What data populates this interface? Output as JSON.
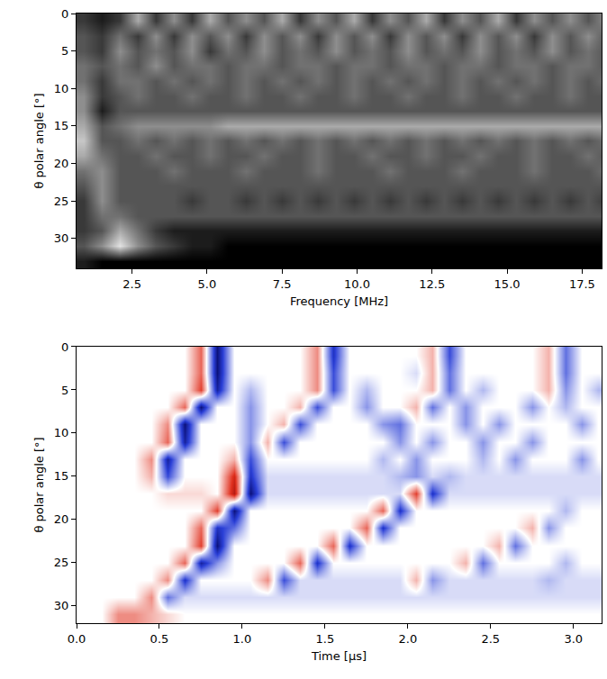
{
  "chart_data": [
    {
      "type": "heatmap",
      "xlabel": "Frequency [MHz]",
      "ylabel": "θ polar angle [°]",
      "xlim": [
        0.65,
        18.15
      ],
      "ylim": [
        34,
        0
      ],
      "xticks": [
        2.5,
        {
          "value": 5,
          "label": "5.0"
        },
        7.5,
        {
          "value": 10,
          "label": "10.0"
        },
        12.5,
        {
          "value": 15,
          "label": "15.0"
        },
        17.5
      ],
      "yticks": [
        0,
        5,
        10,
        15,
        20,
        25,
        30
      ],
      "zlim": [
        0,
        9
      ],
      "x": [
        0.9,
        1.5,
        2.1,
        2.7,
        3.3,
        3.9,
        4.5,
        5.1,
        5.7,
        6.3,
        6.9,
        7.5,
        8.1,
        8.7,
        9.3,
        9.9,
        10.5,
        11.1,
        11.7,
        12.3,
        12.9,
        13.5,
        14.1,
        14.7,
        15.3,
        15.9,
        16.5,
        17.1,
        17.7,
        18.3
      ],
      "y": [
        1,
        3,
        5,
        7,
        9,
        11,
        13,
        15,
        17,
        19,
        21,
        23,
        25,
        27,
        29,
        31,
        33
      ],
      "z": [
        [
          2,
          1,
          2,
          6,
          2,
          5,
          2,
          6,
          3,
          5,
          3,
          6,
          2,
          5,
          3,
          6,
          2,
          5,
          3,
          6,
          2,
          5,
          3,
          6,
          2,
          5,
          3,
          5,
          3,
          5
        ],
        [
          3,
          2,
          4,
          2,
          5,
          2,
          5,
          3,
          5,
          2,
          5,
          3,
          5,
          2,
          5,
          3,
          5,
          2,
          5,
          3,
          5,
          2,
          5,
          3,
          5,
          2,
          5,
          3,
          5,
          3
        ],
        [
          3,
          2,
          5,
          3,
          4,
          3,
          5,
          2,
          4,
          3,
          5,
          3,
          4,
          3,
          5,
          3,
          4,
          3,
          5,
          3,
          4,
          3,
          5,
          3,
          4,
          3,
          5,
          3,
          4,
          3
        ],
        [
          4,
          3,
          4,
          3,
          5,
          3,
          4,
          4,
          3,
          4,
          4,
          3,
          4,
          4,
          3,
          4,
          4,
          3,
          4,
          4,
          3,
          4,
          4,
          3,
          4,
          4,
          3,
          4,
          4,
          3
        ],
        [
          4,
          2,
          4,
          4,
          3,
          4,
          3,
          4,
          3,
          4,
          3,
          4,
          3,
          4,
          3,
          4,
          3,
          4,
          3,
          4,
          3,
          4,
          3,
          4,
          3,
          4,
          3,
          4,
          3,
          4
        ],
        [
          5,
          2,
          3,
          4,
          3,
          3,
          4,
          3,
          3,
          4,
          3,
          3,
          4,
          3,
          3,
          4,
          3,
          3,
          4,
          3,
          3,
          4,
          3,
          3,
          4,
          3,
          3,
          4,
          3,
          3
        ],
        [
          5,
          1,
          3,
          3,
          3,
          3,
          3,
          3,
          3,
          3,
          3,
          3,
          3,
          3,
          3,
          3,
          3,
          3,
          3,
          3,
          3,
          3,
          3,
          3,
          3,
          3,
          3,
          3,
          3,
          3
        ],
        [
          6,
          3,
          4,
          5,
          5,
          5,
          5,
          5,
          6,
          6,
          6,
          6,
          6,
          6,
          6,
          6,
          6,
          6,
          6,
          6,
          6,
          6,
          6,
          6,
          6,
          6,
          6,
          6,
          6,
          6
        ],
        [
          7,
          3,
          3,
          4,
          3,
          4,
          3,
          4,
          3,
          4,
          3,
          4,
          3,
          4,
          3,
          4,
          3,
          4,
          3,
          4,
          3,
          4,
          3,
          4,
          3,
          4,
          3,
          4,
          3,
          4
        ],
        [
          6,
          4,
          3,
          3,
          4,
          3,
          3,
          4,
          3,
          3,
          4,
          3,
          3,
          4,
          3,
          3,
          4,
          3,
          3,
          4,
          3,
          3,
          4,
          3,
          3,
          4,
          3,
          3,
          4,
          3
        ],
        [
          4,
          5,
          3,
          3,
          3,
          4,
          3,
          3,
          3,
          4,
          3,
          3,
          3,
          4,
          3,
          3,
          3,
          4,
          3,
          3,
          3,
          4,
          3,
          3,
          3,
          4,
          3,
          3,
          3,
          4
        ],
        [
          3,
          5,
          3,
          3,
          3,
          3,
          3,
          3,
          3,
          3,
          3,
          3,
          3,
          3,
          3,
          3,
          3,
          3,
          3,
          3,
          3,
          3,
          3,
          3,
          3,
          3,
          3,
          3,
          3,
          3
        ],
        [
          2,
          5,
          3,
          3,
          3,
          3,
          2,
          3,
          3,
          2,
          3,
          2,
          3,
          2,
          3,
          2,
          3,
          2,
          3,
          2,
          3,
          2,
          3,
          2,
          3,
          2,
          3,
          2,
          3,
          2
        ],
        [
          2,
          4,
          4,
          3,
          3,
          3,
          3,
          3,
          3,
          3,
          3,
          3,
          3,
          3,
          3,
          3,
          3,
          3,
          3,
          3,
          3,
          3,
          3,
          3,
          3,
          3,
          3,
          3,
          3,
          3
        ],
        [
          2,
          3,
          6,
          4,
          2,
          1,
          1,
          1,
          1,
          1,
          1,
          1,
          1,
          1,
          1,
          1,
          1,
          1,
          1,
          1,
          1,
          1,
          1,
          1,
          1,
          1,
          1,
          1,
          1,
          1
        ],
        [
          3,
          5,
          8,
          5,
          3,
          2,
          1,
          1,
          0,
          0,
          0,
          0,
          0,
          0,
          0,
          0,
          0,
          0,
          0,
          0,
          0,
          0,
          0,
          0,
          0,
          0,
          0,
          0,
          0,
          0
        ],
        [
          1,
          0,
          0,
          0,
          0,
          0,
          0,
          0,
          0,
          0,
          0,
          0,
          0,
          0,
          0,
          0,
          0,
          0,
          0,
          0,
          0,
          0,
          0,
          0,
          0,
          0,
          0,
          0,
          0,
          0
        ]
      ]
    },
    {
      "type": "heatmap",
      "xlabel": "Time [μs]",
      "ylabel": "θ polar angle [°]",
      "xlim": [
        0,
        3.17
      ],
      "ylim": [
        32,
        0
      ],
      "xticks": [
        {
          "value": 0,
          "label": "0.0"
        },
        0.5,
        {
          "value": 1,
          "label": "1.0"
        },
        1.5,
        {
          "value": 2,
          "label": "2.0"
        },
        2.5,
        {
          "value": 3,
          "label": "3.0"
        }
      ],
      "yticks": [
        0,
        5,
        10,
        15,
        20,
        25,
        30
      ],
      "zlim": [
        -9,
        9
      ],
      "x": [
        0.05,
        0.15,
        0.25,
        0.35,
        0.45,
        0.55,
        0.65,
        0.75,
        0.85,
        0.95,
        1.05,
        1.15,
        1.25,
        1.35,
        1.45,
        1.55,
        1.65,
        1.75,
        1.85,
        1.95,
        2.05,
        2.15,
        2.25,
        2.35,
        2.45,
        2.55,
        2.65,
        2.75,
        2.85,
        2.95,
        3.05,
        3.15
      ],
      "y": [
        1,
        3,
        5,
        7,
        9,
        11,
        13,
        15,
        17,
        19,
        21,
        23,
        25,
        27,
        29,
        31
      ],
      "z": [
        [
          0,
          0,
          0,
          0,
          0,
          0,
          0,
          -4,
          8,
          0,
          0,
          0,
          0,
          0,
          -3,
          6,
          0,
          0,
          0,
          0,
          0,
          -2,
          5,
          0,
          0,
          0,
          0,
          0,
          -2,
          4,
          0,
          0
        ],
        [
          0,
          0,
          0,
          0,
          0,
          0,
          0,
          -4,
          8,
          0,
          0,
          0,
          0,
          0,
          -3,
          5,
          0,
          0,
          0,
          0,
          1,
          -2,
          4,
          0,
          0,
          0,
          0,
          0,
          -2,
          4,
          0,
          0
        ],
        [
          0,
          0,
          0,
          0,
          0,
          0,
          0,
          -5,
          7,
          0,
          2,
          0,
          0,
          0,
          -3,
          5,
          0,
          2,
          0,
          0,
          0,
          -2,
          4,
          0,
          2,
          0,
          0,
          0,
          -2,
          3,
          0,
          2
        ],
        [
          0,
          0,
          0,
          0,
          0,
          0,
          -4,
          8,
          0,
          0,
          3,
          0,
          0,
          -2,
          5,
          0,
          0,
          3,
          0,
          0,
          -2,
          4,
          0,
          3,
          0,
          0,
          0,
          3,
          0,
          2,
          0,
          0
        ],
        [
          0,
          0,
          0,
          0,
          0,
          -3,
          8,
          0,
          0,
          0,
          3,
          0,
          -2,
          5,
          0,
          0,
          0,
          0,
          3,
          4,
          0,
          0,
          0,
          3,
          0,
          3,
          0,
          0,
          0,
          0,
          3,
          0
        ],
        [
          0,
          0,
          0,
          0,
          0,
          -4,
          7,
          0,
          0,
          0,
          3,
          -2,
          5,
          0,
          0,
          0,
          0,
          0,
          0,
          3,
          0,
          3,
          0,
          0,
          3,
          0,
          0,
          3,
          0,
          0,
          0,
          0
        ],
        [
          0,
          0,
          0,
          0,
          -3,
          7,
          0,
          0,
          0,
          -2,
          5,
          0,
          0,
          0,
          0,
          0,
          0,
          0,
          2,
          0,
          3,
          0,
          0,
          0,
          2,
          0,
          3,
          0,
          0,
          0,
          3,
          0
        ],
        [
          0,
          0,
          0,
          0,
          -2,
          5,
          0,
          0,
          0,
          -6,
          6,
          1,
          1,
          1,
          1,
          1,
          1,
          1,
          1,
          2,
          3,
          1,
          2,
          1,
          1,
          1,
          1,
          1,
          1,
          1,
          1,
          1
        ],
        [
          0,
          0,
          0,
          0,
          0,
          -1,
          -1,
          -1,
          0,
          -7,
          8,
          1,
          1,
          1,
          1,
          1,
          1,
          1,
          1,
          1,
          -5,
          6,
          1,
          1,
          1,
          1,
          1,
          1,
          1,
          1,
          1,
          1
        ],
        [
          0,
          0,
          0,
          0,
          0,
          0,
          0,
          0,
          -5,
          8,
          0,
          0,
          0,
          0,
          0,
          0,
          0,
          0,
          -4,
          6,
          0,
          0,
          0,
          0,
          0,
          0,
          0,
          0,
          0,
          2,
          0,
          0
        ],
        [
          0,
          0,
          0,
          0,
          0,
          0,
          0,
          -4,
          6,
          4,
          0,
          0,
          0,
          0,
          0,
          0,
          0,
          -4,
          6,
          0,
          0,
          0,
          0,
          0,
          0,
          0,
          0,
          -2,
          3,
          0,
          0,
          0
        ],
        [
          0,
          0,
          0,
          0,
          0,
          0,
          0,
          -5,
          8,
          0,
          0,
          0,
          0,
          0,
          0,
          -4,
          6,
          0,
          0,
          0,
          0,
          0,
          0,
          0,
          0,
          -2,
          4,
          0,
          0,
          0,
          0,
          0
        ],
        [
          0,
          0,
          0,
          0,
          0,
          0,
          -4,
          7,
          3,
          0,
          0,
          0,
          0,
          -4,
          6,
          0,
          0,
          0,
          0,
          0,
          0,
          0,
          0,
          -2,
          4,
          0,
          0,
          0,
          0,
          2,
          0,
          0
        ],
        [
          0,
          0,
          0,
          0,
          0,
          -3,
          6,
          0,
          0,
          0,
          0,
          -3,
          5,
          1,
          1,
          1,
          1,
          1,
          1,
          1,
          -2,
          3,
          1,
          1,
          1,
          1,
          1,
          1,
          2,
          1,
          1,
          1
        ],
        [
          0,
          0,
          0,
          0,
          -3,
          4,
          1,
          1,
          1,
          1,
          1,
          1,
          1,
          1,
          1,
          1,
          1,
          1,
          1,
          1,
          1,
          1,
          1,
          1,
          1,
          1,
          1,
          1,
          1,
          1,
          1,
          1
        ],
        [
          0,
          0,
          -3,
          -3,
          -2,
          -1,
          0,
          0,
          0,
          0,
          0,
          0,
          0,
          0,
          0,
          0,
          0,
          0,
          0,
          0,
          0,
          0,
          0,
          0,
          0,
          0,
          0,
          0,
          0,
          0,
          0,
          0
        ]
      ]
    }
  ]
}
